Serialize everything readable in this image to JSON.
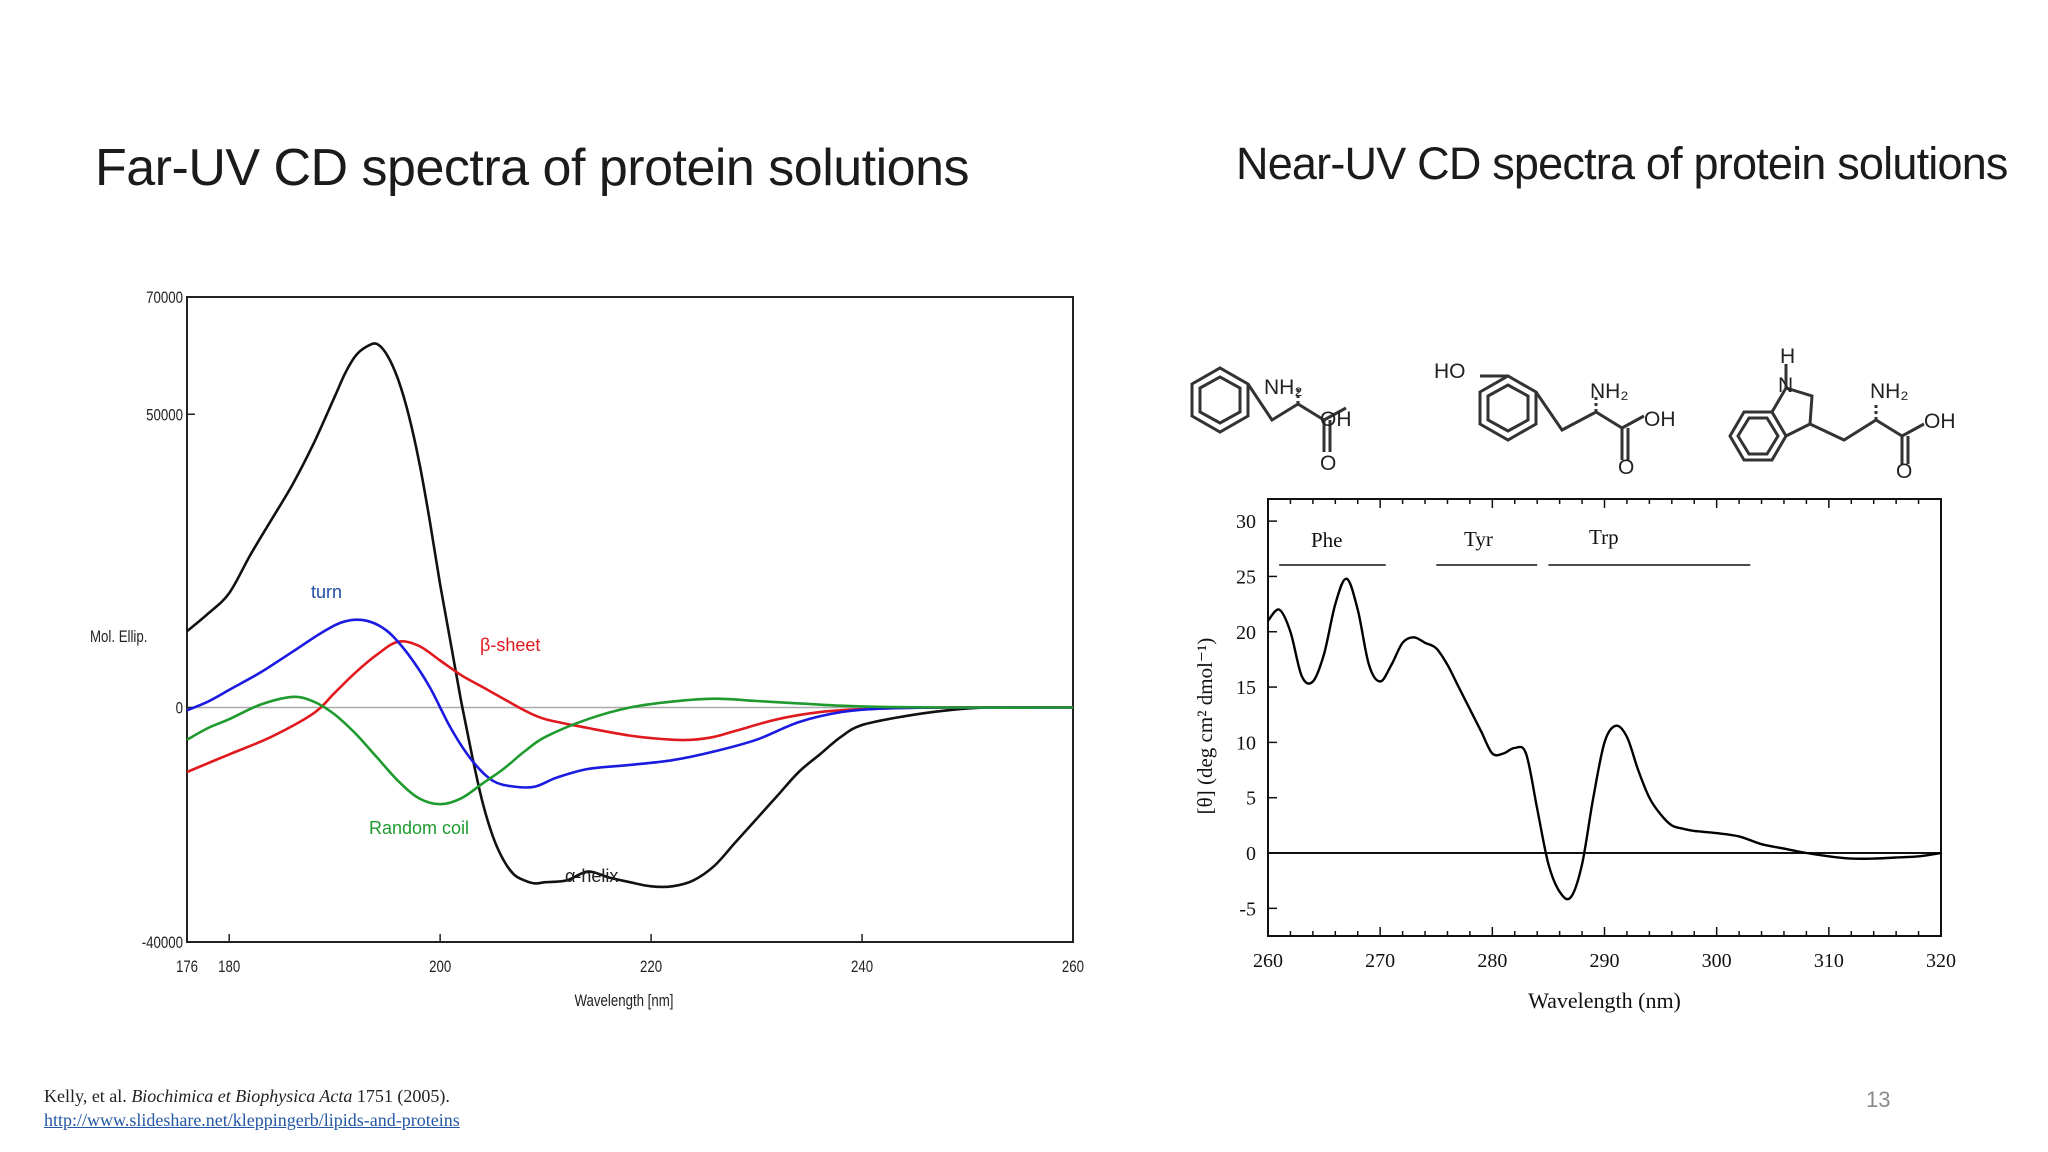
{
  "slide": {
    "title_left": "Far-UV CD spectra of protein solutions",
    "title_right": "Near-UV CD spectra of protein solutions",
    "citation": {
      "authors": "Kelly, et al. ",
      "journal": "Biochimica et Biophysica Acta",
      "detail": " 1751 (2005)."
    },
    "source_link": "http://www.slideshare.net/kleppingerb/lipids-and-proteins",
    "page_number": "13"
  },
  "colors": {
    "alpha_helix": "#111111",
    "beta_sheet": "#e0191e",
    "turn": "#1a1ae0",
    "random_coil": "#1f9a2e",
    "zero_line": "#aaaaaa",
    "near_uv_line": "#000000",
    "label_turn": "#1f4fa3"
  },
  "molecules": [
    "Phenylalanine",
    "Tyrosine",
    "Tryptophan"
  ],
  "molecule_labels": {
    "nh2": "NH₂",
    "oh": "OH",
    "o": "O",
    "ho": "HO",
    "n": "N",
    "h": "H"
  },
  "chart_data": [
    {
      "type": "line",
      "title": "",
      "xlabel": "Wavelength [nm]",
      "ylabel": "Mol. Ellip.",
      "xlim": [
        176,
        260
      ],
      "ylim": [
        -40000,
        70000
      ],
      "x_ticks": [
        176,
        180,
        200,
        220,
        240,
        260
      ],
      "y_ticks": [
        -40000,
        0,
        50000,
        70000
      ],
      "grid": false,
      "series": [
        {
          "name": "α-helix",
          "color_key": "alpha_helix",
          "x": [
            176,
            178,
            180,
            182,
            184,
            186,
            188,
            190,
            191,
            192,
            193,
            194,
            195,
            196,
            197,
            198,
            199,
            200,
            201,
            202,
            203,
            204,
            205,
            206,
            207,
            208,
            209,
            210,
            212,
            214,
            216,
            218,
            220,
            222,
            224,
            226,
            228,
            230,
            232,
            234,
            236,
            238,
            240,
            244,
            248,
            252,
            256,
            260
          ],
          "y": [
            13000,
            16000,
            19500,
            26000,
            32000,
            38000,
            45000,
            53000,
            57000,
            60000,
            61500,
            62000,
            60000,
            56000,
            50000,
            42000,
            32000,
            21000,
            11000,
            1000,
            -8000,
            -16000,
            -22000,
            -26000,
            -28500,
            -29500,
            -30000,
            -29800,
            -29500,
            -28000,
            -29000,
            -29800,
            -30500,
            -30500,
            -29500,
            -27000,
            -23000,
            -19000,
            -15000,
            -11000,
            -8000,
            -5000,
            -3000,
            -1500,
            -500,
            0,
            0,
            0
          ]
        },
        {
          "name": "β-sheet",
          "color_key": "beta_sheet",
          "x": [
            176,
            180,
            184,
            188,
            190,
            192,
            194,
            196,
            198,
            200,
            202,
            204,
            206,
            208,
            210,
            214,
            218,
            222,
            224,
            226,
            228,
            232,
            236,
            240,
            248,
            260
          ],
          "y": [
            -11000,
            -8000,
            -5000,
            -1000,
            2500,
            6000,
            9000,
            11200,
            10500,
            8000,
            5500,
            3500,
            1500,
            -500,
            -2000,
            -3500,
            -4800,
            -5500,
            -5500,
            -5000,
            -4000,
            -2000,
            -800,
            -300,
            0,
            0
          ]
        },
        {
          "name": "turn",
          "color_key": "turn",
          "x": [
            176,
            178,
            180,
            183,
            186,
            189,
            191,
            193,
            195,
            197,
            199,
            201,
            203,
            205,
            207,
            209,
            211,
            214,
            218,
            222,
            226,
            230,
            234,
            238,
            242,
            248,
            260
          ],
          "y": [
            -500,
            1000,
            3000,
            6000,
            9500,
            13000,
            14700,
            14800,
            13000,
            9000,
            3500,
            -3500,
            -9000,
            -12500,
            -13500,
            -13500,
            -12000,
            -10500,
            -9800,
            -9000,
            -7500,
            -5500,
            -2500,
            -800,
            -200,
            0,
            0
          ]
        },
        {
          "name": "Random coil",
          "color_key": "random_coil",
          "x": [
            176,
            178,
            180,
            183,
            186,
            188,
            190,
            192,
            194,
            196,
            198,
            200,
            202,
            204,
            206,
            208,
            210,
            214,
            218,
            222,
            226,
            230,
            234,
            238,
            242,
            248,
            260
          ],
          "y": [
            -5500,
            -3500,
            -2000,
            500,
            1800,
            1000,
            -1200,
            -4500,
            -8500,
            -12500,
            -15500,
            -16500,
            -15500,
            -13000,
            -10500,
            -7500,
            -5000,
            -2000,
            0,
            1000,
            1500,
            1100,
            700,
            300,
            100,
            0,
            0
          ]
        }
      ],
      "annotations": [
        "turn",
        "β-sheet",
        "Random coil",
        "α-helix"
      ]
    },
    {
      "type": "line",
      "title": "",
      "xlabel": "Wavelength (nm)",
      "ylabel": "[θ] (deg cm² dmol⁻¹)",
      "xlim": [
        260,
        320
      ],
      "ylim": [
        -7.5,
        32
      ],
      "x_ticks": [
        260,
        270,
        280,
        290,
        300,
        310,
        320
      ],
      "y_ticks": [
        -5,
        0,
        5,
        10,
        15,
        20,
        25,
        30
      ],
      "grid": false,
      "regions": [
        {
          "label": "Phe",
          "x": [
            261,
            270.5
          ]
        },
        {
          "label": "Tyr",
          "x": [
            275,
            284
          ]
        },
        {
          "label": "Trp",
          "x": [
            285,
            303
          ]
        }
      ],
      "series": [
        {
          "name": "",
          "x": [
            260,
            261,
            262,
            263,
            264,
            265,
            266,
            267,
            268,
            269,
            270,
            271,
            272,
            273,
            274,
            275,
            276,
            277,
            278,
            279,
            280,
            281,
            282,
            283,
            284,
            285,
            286,
            287,
            288,
            289,
            290,
            291,
            292,
            293,
            294,
            295,
            296,
            297,
            298,
            300,
            302,
            304,
            306,
            308,
            310,
            312,
            314,
            316,
            318,
            320
          ],
          "y": [
            21,
            22,
            20,
            16,
            15.5,
            18,
            22.5,
            24.8,
            22,
            17,
            15.5,
            17,
            19,
            19.5,
            19,
            18.5,
            17,
            15,
            13,
            11,
            9,
            9,
            9.5,
            9,
            4,
            -1,
            -3.5,
            -4,
            -1,
            5,
            10,
            11.5,
            10.5,
            7.5,
            5,
            3.5,
            2.5,
            2.2,
            2,
            1.8,
            1.5,
            0.8,
            0.4,
            0,
            -0.3,
            -0.5,
            -0.5,
            -0.4,
            -0.3,
            0
          ]
        }
      ]
    }
  ]
}
